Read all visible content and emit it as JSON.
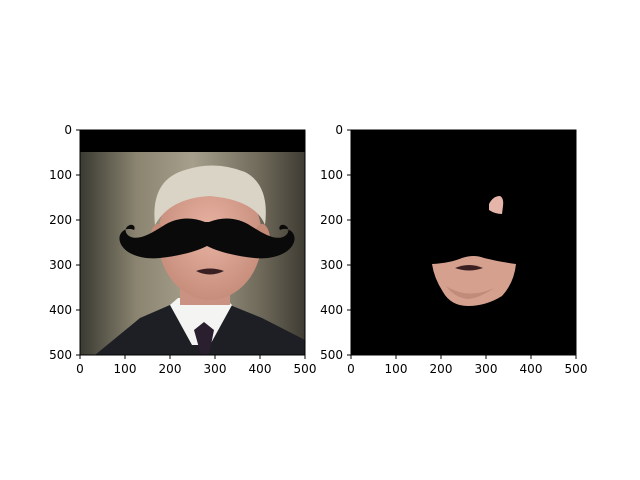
{
  "figure": {
    "background": "#ffffff",
    "axis_color": "#000000"
  },
  "chart_data": [
    {
      "type": "image",
      "panel": "left",
      "content": "man in suit with overlaid black mustache",
      "xlim": [
        0,
        500
      ],
      "ylim": [
        500,
        0
      ],
      "xticks": [
        0,
        100,
        200,
        300,
        400,
        500
      ],
      "yticks": [
        0,
        100,
        200,
        300,
        400,
        500
      ],
      "xtick_labels": [
        "0",
        "100",
        "200",
        "300",
        "400",
        "500"
      ],
      "ytick_labels": [
        "0",
        "100",
        "200",
        "300",
        "400",
        "500"
      ],
      "title": "",
      "xlabel": "",
      "ylabel": ""
    },
    {
      "type": "image",
      "panel": "right",
      "content": "mask: black background with visible skin region of lower face and small ear patch",
      "xlim": [
        0,
        500
      ],
      "ylim": [
        500,
        0
      ],
      "xticks": [
        0,
        100,
        200,
        300,
        400,
        500
      ],
      "yticks": [
        0,
        100,
        200,
        300,
        400,
        500
      ],
      "xtick_labels": [
        "0",
        "100",
        "200",
        "300",
        "400",
        "500"
      ],
      "ytick_labels": [
        "0",
        "100",
        "200",
        "300",
        "400",
        "500"
      ],
      "title": "",
      "xlabel": "",
      "ylabel": ""
    }
  ]
}
